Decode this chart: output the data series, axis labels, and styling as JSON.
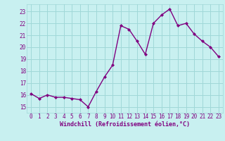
{
  "x": [
    0,
    1,
    2,
    3,
    4,
    5,
    6,
    7,
    8,
    9,
    10,
    11,
    12,
    13,
    14,
    15,
    16,
    17,
    18,
    19,
    20,
    21,
    22,
    23
  ],
  "y": [
    16.1,
    15.7,
    16.0,
    15.8,
    15.8,
    15.7,
    15.6,
    15.0,
    16.3,
    17.5,
    18.5,
    21.8,
    21.5,
    20.5,
    19.4,
    22.0,
    22.7,
    23.2,
    21.8,
    22.0,
    21.1,
    20.5,
    20.0,
    19.2
  ],
  "xlim": [
    -0.5,
    23.5
  ],
  "ylim": [
    14.5,
    23.6
  ],
  "yticks": [
    15,
    16,
    17,
    18,
    19,
    20,
    21,
    22,
    23
  ],
  "xtick_labels": [
    "0",
    "1",
    "2",
    "3",
    "4",
    "5",
    "6",
    "7",
    "8",
    "9",
    "10",
    "11",
    "12",
    "13",
    "14",
    "15",
    "16",
    "17",
    "18",
    "19",
    "20",
    "21",
    "22",
    "23"
  ],
  "xlabel": "Windchill (Refroidissement éolien,°C)",
  "line_color": "#800080",
  "marker": "D",
  "marker_size": 2.0,
  "background_color": "#c8f0f0",
  "grid_color": "#a0d8d8",
  "tick_color": "#800080",
  "label_color": "#800080",
  "line_width": 1.0,
  "tick_fontsize": 5.5,
  "label_fontsize": 6.0
}
